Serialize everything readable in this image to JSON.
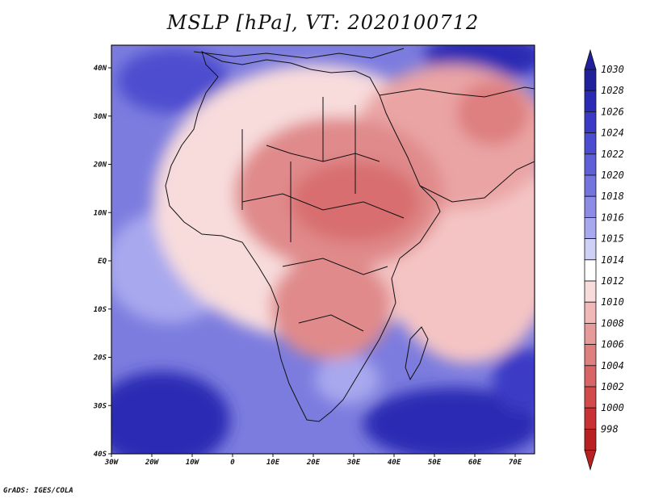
{
  "title": "MSLP [hPa], VT: 2020100712",
  "footer": "GrADS: IGES/COLA",
  "map": {
    "region": "Africa",
    "longitude_ticks": [
      "30W",
      "20W",
      "10W",
      "0",
      "10E",
      "20E",
      "30E",
      "40E",
      "50E",
      "60E",
      "70E"
    ],
    "latitude_ticks": [
      "40N",
      "30N",
      "20N",
      "10N",
      "EQ",
      "10S",
      "20S",
      "30S",
      "40S"
    ],
    "lon_range": [
      -30,
      75
    ],
    "lat_range": [
      -40,
      45
    ]
  },
  "colorbar": {
    "levels": [
      {
        "label": "1030",
        "color": "#20209a"
      },
      {
        "label": "1028",
        "color": "#2a2ab4"
      },
      {
        "label": "1026",
        "color": "#3a3ac6"
      },
      {
        "label": "1024",
        "color": "#4c4cd0"
      },
      {
        "label": "1022",
        "color": "#5f5fd8"
      },
      {
        "label": "1020",
        "color": "#7474de"
      },
      {
        "label": "1018",
        "color": "#8c8ce6"
      },
      {
        "label": "1016",
        "color": "#a8a8ee"
      },
      {
        "label": "1015",
        "color": "#cfd0f6"
      },
      {
        "label": "1014",
        "color": "#ffffff"
      },
      {
        "label": "1012",
        "color": "#f8dcdc"
      },
      {
        "label": "1010",
        "color": "#f1b8b8"
      },
      {
        "label": "1008",
        "color": "#e69a9a"
      },
      {
        "label": "1006",
        "color": "#de7f80"
      },
      {
        "label": "1004",
        "color": "#d86466"
      },
      {
        "label": "1002",
        "color": "#d24a4c"
      },
      {
        "label": "1000",
        "color": "#c83234"
      },
      {
        "label": "998",
        "color": "#b82022"
      }
    ]
  }
}
